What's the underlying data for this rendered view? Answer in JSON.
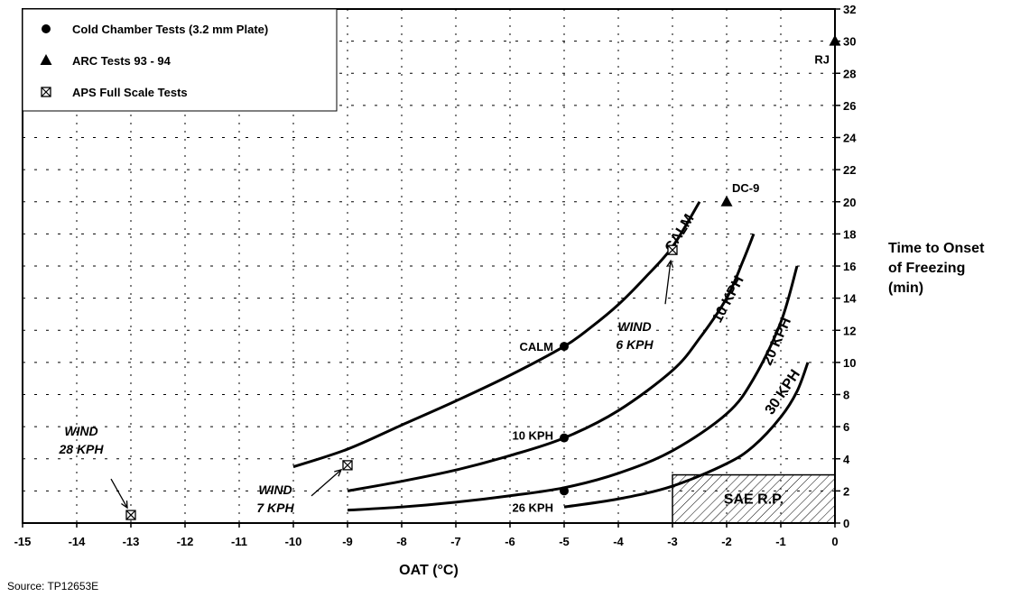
{
  "chart_data": {
    "type": "line",
    "xlabel": "OAT (°C)",
    "ylabel": [
      "Time to Onset",
      "of Freezing",
      "(min)"
    ],
    "xlim": [
      -15,
      0
    ],
    "ylim": [
      0,
      32
    ],
    "x_ticks": [
      -15,
      -14,
      -13,
      -12,
      -11,
      -10,
      -9,
      -8,
      -7,
      -6,
      -5,
      -4,
      -3,
      -2,
      -1,
      0
    ],
    "y_ticks": [
      0,
      2,
      4,
      6,
      8,
      10,
      12,
      14,
      16,
      18,
      20,
      22,
      24,
      26,
      28,
      30,
      32
    ],
    "grid": true,
    "source": "Source: TP12653E",
    "legend": [
      {
        "label": "Cold Chamber Tests (3.2 mm Plate)",
        "marker": "circle"
      },
      {
        "label": "ARC Tests 93 - 94",
        "marker": "triangle"
      },
      {
        "label": "APS Full Scale Tests",
        "marker": "boxed-x"
      }
    ],
    "series": [
      {
        "name": "CALM",
        "x": [
          -10,
          -9,
          -8,
          -7,
          -6,
          -5,
          -4.5,
          -4,
          -3.5,
          -3,
          -2.5
        ],
        "y": [
          3.5,
          4.6,
          6.1,
          7.6,
          9.2,
          11.0,
          12.2,
          13.6,
          15.3,
          17.2,
          20.0
        ]
      },
      {
        "name": "10 KPH",
        "x": [
          -9,
          -8,
          -7,
          -6,
          -5,
          -4,
          -3,
          -2.5,
          -2,
          -1.7,
          -1.5
        ],
        "y": [
          2.0,
          2.6,
          3.3,
          4.2,
          5.3,
          7.0,
          9.5,
          11.5,
          14.0,
          16.3,
          18.0
        ]
      },
      {
        "name": "20 KPH",
        "x": [
          -9,
          -8,
          -7,
          -6,
          -5,
          -4,
          -3,
          -2,
          -1.5,
          -1,
          -0.7
        ],
        "y": [
          0.8,
          1.0,
          1.3,
          1.7,
          2.2,
          3.1,
          4.5,
          6.8,
          9.0,
          12.5,
          16.0
        ]
      },
      {
        "name": "30 KPH",
        "x": [
          -5,
          -4,
          -3,
          -2,
          -1.5,
          -1,
          -0.7,
          -0.5
        ],
        "y": [
          1.0,
          1.5,
          2.3,
          3.7,
          4.8,
          6.6,
          8.2,
          10.0
        ]
      }
    ],
    "points": [
      {
        "group": "Cold Chamber Tests (3.2 mm Plate)",
        "marker": "circle",
        "x": -5,
        "y": 11,
        "label": "CALM"
      },
      {
        "group": "Cold Chamber Tests (3.2 mm Plate)",
        "marker": "circle",
        "x": -5,
        "y": 5.3,
        "label": "10 KPH"
      },
      {
        "group": "Cold Chamber Tests (3.2 mm Plate)",
        "marker": "circle",
        "x": -5,
        "y": 2,
        "label": "26 KPH"
      },
      {
        "group": "ARC Tests 93 - 94",
        "marker": "triangle",
        "x": -2,
        "y": 20,
        "label": "DC-9"
      },
      {
        "group": "ARC Tests 93 - 94",
        "marker": "triangle",
        "x": 0,
        "y": 30,
        "label": "RJ"
      },
      {
        "group": "APS Full Scale Tests",
        "marker": "boxed-x",
        "x": -3,
        "y": 17,
        "label": [
          "WIND",
          "6 KPH"
        ]
      },
      {
        "group": "APS Full Scale Tests",
        "marker": "boxed-x",
        "x": -9,
        "y": 3.6,
        "label": [
          "WIND",
          "7 KPH"
        ]
      },
      {
        "group": "APS Full Scale Tests",
        "marker": "boxed-x",
        "x": -13,
        "y": 0.5,
        "label": [
          "WIND",
          "28 KPH"
        ]
      }
    ],
    "region": {
      "label": "SAE R.P.",
      "x": [
        -3,
        0
      ],
      "y": [
        0,
        3
      ]
    }
  }
}
